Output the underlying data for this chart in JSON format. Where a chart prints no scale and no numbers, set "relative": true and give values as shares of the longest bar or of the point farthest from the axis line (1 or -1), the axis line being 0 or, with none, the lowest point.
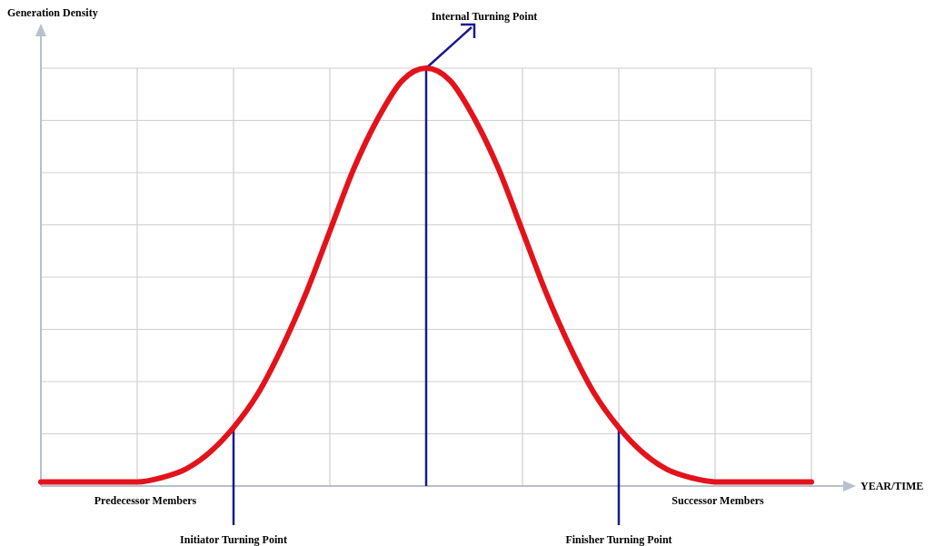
{
  "chart_data": {
    "type": "line",
    "relative": true,
    "ylabel": "Generation Density",
    "xlabel": "YEAR/TIME",
    "categories": [
      null,
      null,
      null,
      null,
      null,
      null,
      null,
      null,
      null,
      null,
      null,
      null,
      null,
      null,
      null,
      null,
      null,
      null,
      null,
      null,
      null,
      null,
      null,
      null,
      null,
      null,
      null,
      null,
      null,
      null,
      null,
      null,
      null
    ],
    "series": [
      {
        "color": "#e3131b",
        "values": [
          0.01,
          0.01,
          0.01,
          0.01,
          0.01,
          0.02,
          0.04,
          0.08,
          0.14,
          0.22,
          0.33,
          0.46,
          0.61,
          0.76,
          0.88,
          0.97,
          1,
          0.97,
          0.88,
          0.76,
          0.61,
          0.46,
          0.33,
          0.22,
          0.14,
          0.08,
          0.04,
          0.02,
          0.01,
          0.01,
          0.01,
          0.01,
          0.01
        ]
      }
    ],
    "annotations": [
      "Internal Turning Point",
      "Initiator Turning Point",
      "Finisher Turning Point",
      "Predecessor Members",
      "Successor Members"
    ],
    "grid": true,
    "marker": "none",
    "line_style": "solid"
  }
}
